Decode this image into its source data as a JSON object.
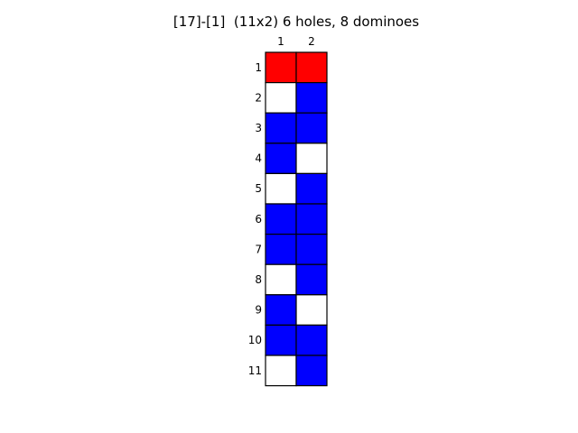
{
  "title": "[17]-[1]  (11x2) 6 holes, 8 dominoes",
  "grid": {
    "rows": 11,
    "cols": 2,
    "col_labels": [
      "1",
      "2"
    ],
    "row_labels": [
      "1",
      "2",
      "3",
      "4",
      "5",
      "6",
      "7",
      "8",
      "9",
      "10",
      "11"
    ],
    "cells": [
      [
        "R",
        "R"
      ],
      [
        "W",
        "B"
      ],
      [
        "B",
        "B"
      ],
      [
        "B",
        "W"
      ],
      [
        "W",
        "B"
      ],
      [
        "B",
        "B"
      ],
      [
        "B",
        "B"
      ],
      [
        "W",
        "B"
      ],
      [
        "B",
        "W"
      ],
      [
        "B",
        "B"
      ],
      [
        "W",
        "B"
      ]
    ]
  },
  "colors": {
    "R": "#ff0000",
    "B": "#0000ff",
    "W": "#ffffff",
    "border": "#000000"
  }
}
